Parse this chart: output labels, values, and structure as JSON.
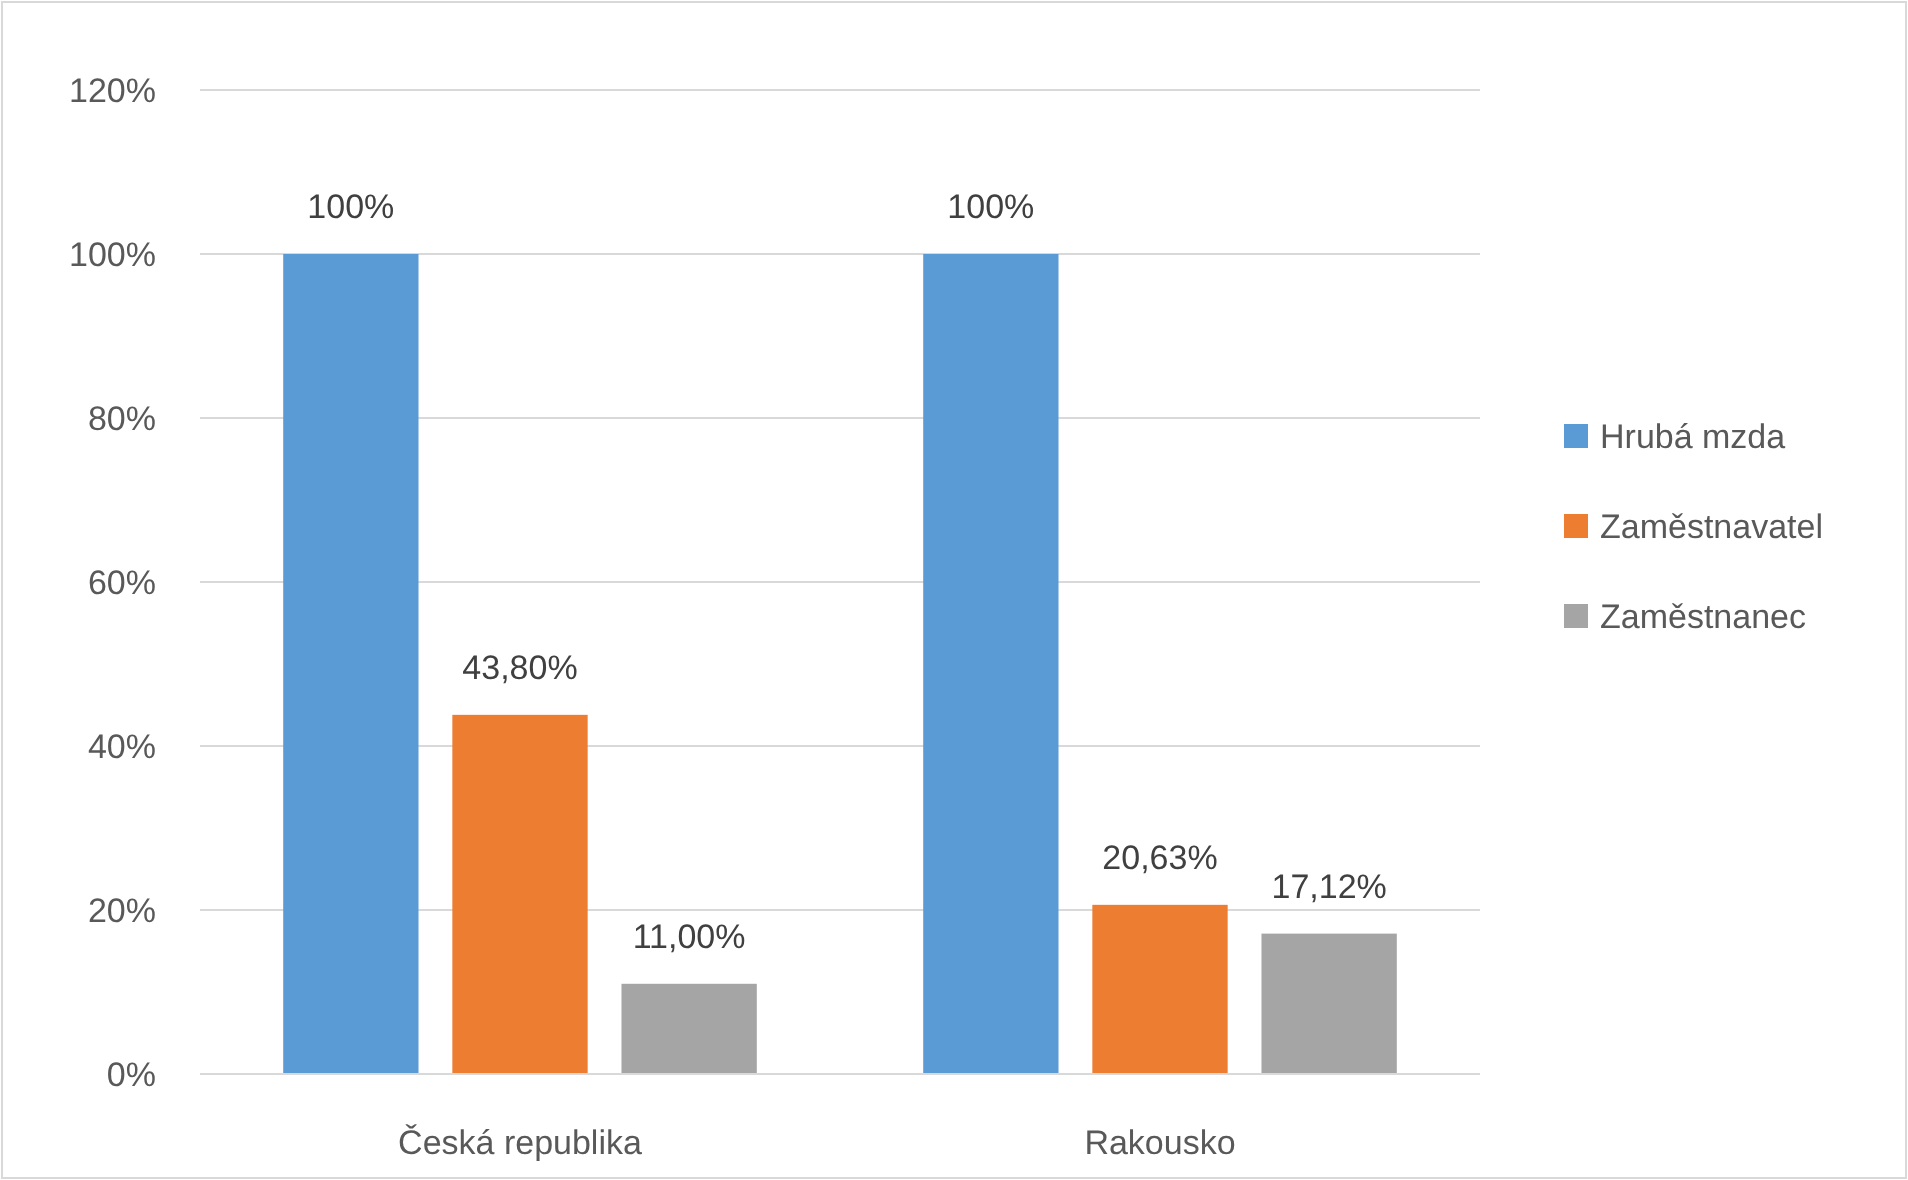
{
  "chart_data": {
    "type": "bar",
    "categories": [
      "Česká republika",
      "Rakousko"
    ],
    "series": [
      {
        "name": "Hrubá mzda",
        "color": "#5b9bd5",
        "values": [
          100,
          100
        ],
        "value_labels": [
          "100%",
          "100%"
        ]
      },
      {
        "name": "Zaměstnavatel",
        "color": "#ed7d31",
        "values": [
          43.8,
          20.63
        ],
        "value_labels": [
          "43,80%",
          "20,63%"
        ]
      },
      {
        "name": "Zaměstnanec",
        "color": "#a5a5a5",
        "values": [
          11,
          17.12
        ],
        "value_labels": [
          "11,00%",
          "17,12%"
        ]
      }
    ],
    "ylim": [
      0,
      120
    ],
    "yticks": [
      {
        "value": 0,
        "label": "0%"
      },
      {
        "value": 20,
        "label": "20%"
      },
      {
        "value": 40,
        "label": "40%"
      },
      {
        "value": 60,
        "label": "60%"
      },
      {
        "value": 80,
        "label": "80%"
      },
      {
        "value": 100,
        "label": "100%"
      },
      {
        "value": 120,
        "label": "120%"
      }
    ],
    "grid": "y",
    "legend": "right"
  }
}
